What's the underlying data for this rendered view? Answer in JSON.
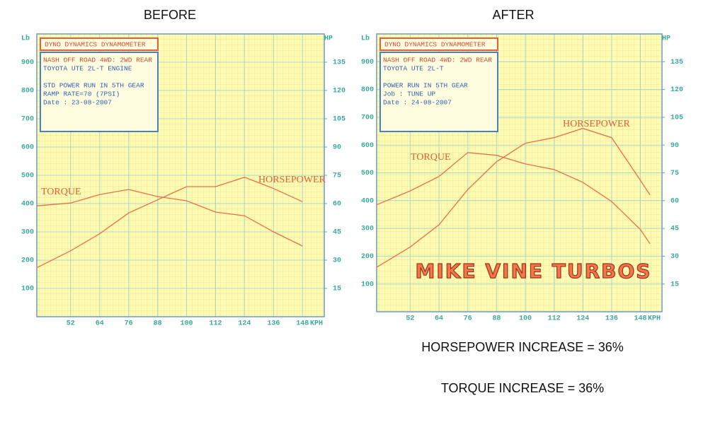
{
  "chart_data": [
    {
      "type": "line",
      "title": "BEFORE",
      "xlabel": "KPH",
      "ylabel": "Lb",
      "y2label": "HP",
      "box_title": "DYNO DYNAMICS DYNAMOMETER",
      "info": [
        [
          "NASH OFF ROAD 4WD: 2WD REAR",
          "TOYOTA UTE 2L-T ENGINE"
        ],
        [
          "STD POWER RUN IN 5TH GEAR",
          "RAMP RATE=70    (7PSI)",
          "Date     : 23-08-2007"
        ]
      ],
      "x": [
        38,
        52,
        64,
        76,
        88,
        100,
        112,
        124,
        136,
        148
      ],
      "series": [
        {
          "name": "TORQUE",
          "color": "#e8704a",
          "values": [
            392,
            402,
            432,
            450,
            425,
            410,
            370,
            357,
            300,
            250
          ]
        },
        {
          "name": "HORSEPOWER",
          "color": "#e8704a",
          "axis": "y2",
          "values": [
            26,
            35,
            44,
            55,
            62,
            69,
            69,
            74,
            68,
            61
          ]
        }
      ],
      "xlim": [
        38,
        157
      ],
      "xticks": [
        52,
        64,
        76,
        88,
        100,
        112,
        124,
        136,
        148
      ],
      "ylim": [
        0,
        1000
      ],
      "yticks": [
        100,
        200,
        300,
        400,
        500,
        600,
        700,
        800,
        900
      ],
      "y2lim": [
        0,
        150
      ],
      "y2ticks": [
        15,
        30,
        45,
        60,
        75,
        90,
        105,
        120,
        135
      ],
      "grid": true
    },
    {
      "type": "line",
      "title": "AFTER",
      "xlabel": "KPH",
      "ylabel": "Lb",
      "y2label": "HP",
      "box_title": "DYNO DYNAMICS DYNAMOMETER",
      "info": [
        [
          "NASH OFF ROAD 4WD: 2WD REAR",
          "TOYOTA UTE 2L-T"
        ],
        [
          "POWER RUN IN 5TH GEAR",
          "Job      : TUNE UP",
          "Date     : 24-08-2007"
        ]
      ],
      "watermark": "MIKE VINE TURBOS",
      "x": [
        38,
        52,
        64,
        76,
        88,
        100,
        112,
        124,
        136,
        148,
        152
      ],
      "series": [
        {
          "name": "TORQUE",
          "color": "#e8704a",
          "values": [
            385,
            435,
            487,
            573,
            563,
            532,
            512,
            466,
            397,
            296,
            245
          ]
        },
        {
          "name": "HORSEPOWER",
          "color": "#e8704a",
          "axis": "y2",
          "values": [
            24,
            35,
            47,
            66,
            81,
            91,
            94,
            99,
            94,
            71,
            63
          ]
        }
      ],
      "xlim": [
        38,
        157
      ],
      "xticks": [
        52,
        64,
        76,
        88,
        100,
        112,
        124,
        136,
        148
      ],
      "ylim": [
        0,
        1000
      ],
      "yticks": [
        100,
        200,
        300,
        400,
        500,
        600,
        700,
        800,
        900
      ],
      "y2lim": [
        0,
        150
      ],
      "y2ticks": [
        15,
        30,
        45,
        60,
        75,
        90,
        105,
        120,
        135
      ],
      "grid": true
    }
  ],
  "notes": [
    "HORSEPOWER INCREASE = 36%",
    "TORQUE INCREASE = 36%"
  ]
}
